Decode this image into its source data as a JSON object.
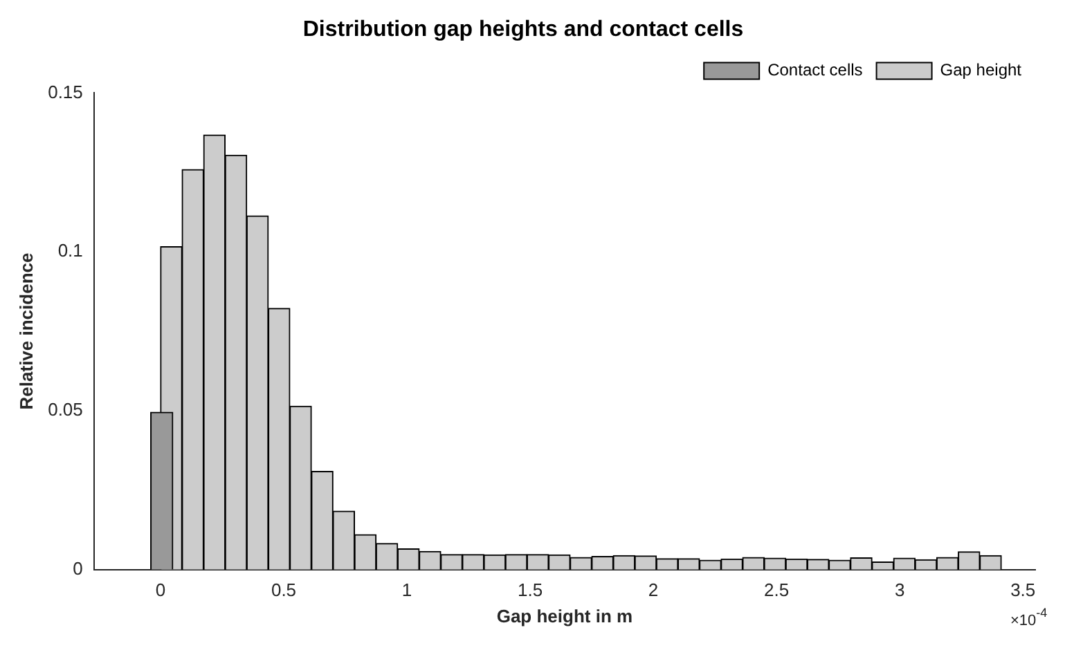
{
  "chart_data": {
    "type": "bar",
    "title": "Distribution gap heights and contact cells",
    "xlabel": "Gap height in m",
    "ylabel": "Relative incidence",
    "annotations": [
      "×10$^{-4}$"
    ],
    "series": [
      {
        "name": "Gap height",
        "color": "#cccccc",
        "x": [
          0.04375,
          0.13125,
          0.21875,
          0.30625,
          0.39375,
          0.48125,
          0.56875,
          0.65625,
          0.74375,
          0.83125,
          0.91875,
          1.00625,
          1.09375,
          1.18125,
          1.26875,
          1.35625,
          1.44375,
          1.53125,
          1.61875,
          1.70625,
          1.79375,
          1.88125,
          1.96875,
          2.05625,
          2.14375,
          2.23125,
          2.31875,
          2.40625,
          2.49375,
          2.58125,
          2.66875,
          2.75625,
          2.84375,
          2.93125,
          3.01875,
          3.10625,
          3.19375,
          3.28125,
          3.36875,
          3.45625
        ],
        "values": [
          0.1016,
          0.1259,
          0.1368,
          0.1304,
          0.1113,
          0.0822,
          0.0514,
          0.0309,
          0.0184,
          0.011,
          0.0082,
          0.0065,
          0.0057,
          0.0047,
          0.0047,
          0.0046,
          0.0047,
          0.0047,
          0.0046,
          0.0038,
          0.0041,
          0.0044,
          0.0043,
          0.0034,
          0.0034,
          0.0029,
          0.0033,
          0.0038,
          0.0036,
          0.0033,
          0.0032,
          0.0029,
          0.0037,
          0.0024,
          0.0036,
          0.0031,
          0.0038,
          0.0056,
          0.0044,
          0
        ]
      },
      {
        "name": "Contact cells",
        "color": "#999999",
        "x": [
          -0.175,
          -0.085,
          0.005
        ],
        "values": [
          0,
          0,
          0.0495
        ]
      }
    ],
    "xlim": [
      -0.27,
      3.55
    ],
    "xticks": [
      0,
      0.5,
      1,
      1.5,
      2,
      2.5,
      3,
      3.5
    ],
    "ylim": [
      0,
      0.15
    ],
    "yticks": [
      0,
      0.05,
      0.1,
      0.15
    ],
    "grid": false,
    "legend": "top right"
  }
}
